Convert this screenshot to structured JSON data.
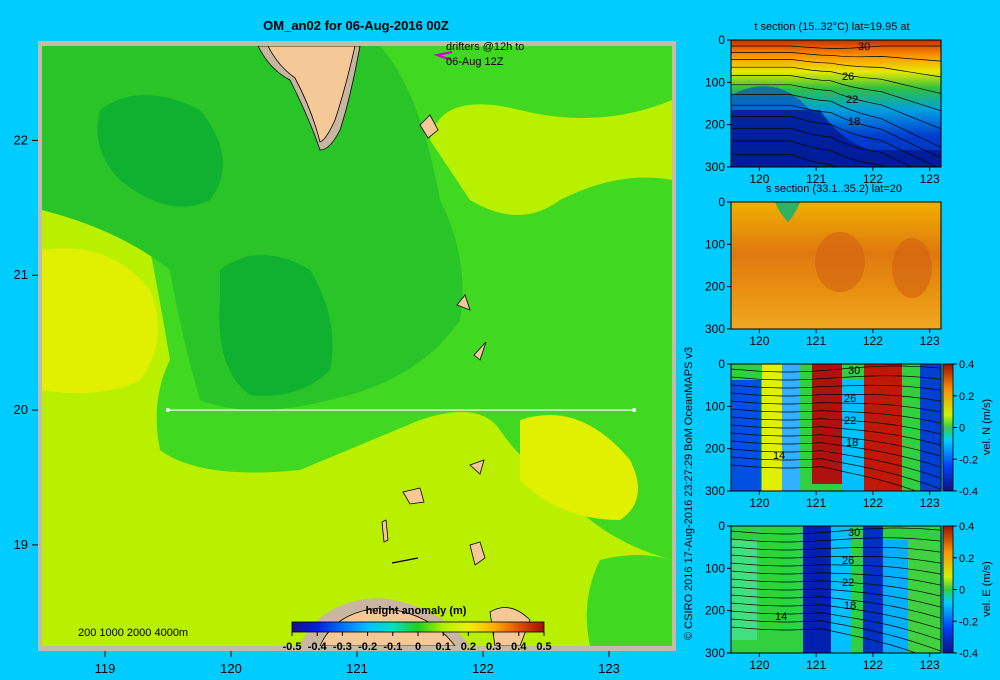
{
  "colors": {
    "background": "#00ccff",
    "land": "#f5c898",
    "shelf": "#c8b6a0",
    "frame": "#c4bca8"
  },
  "chart_data": [
    {
      "id": "main",
      "type": "heatmap",
      "title": "OM_an02 for 06-Aug-2016 00Z",
      "xlim": [
        118.5,
        123.5
      ],
      "ylim": [
        18.25,
        22.7
      ],
      "xticks": [
        "119",
        "120",
        "121",
        "122",
        "123"
      ],
      "yticks": [
        "19",
        "20",
        "21",
        "22"
      ],
      "section_line": {
        "lat": 20,
        "lon_start": 119.5,
        "lon_end": 123.2
      },
      "bathymetry_legend": "200  1000  2000  4000m",
      "drifter_note": [
        "drifters @12h to",
        "06-Aug 12Z"
      ],
      "colorbar": {
        "label": "height anomaly  (m)",
        "range": [
          -0.5,
          0.5
        ],
        "ticks": [
          "-0.5",
          "-0.4",
          "-0.3",
          "-0.2",
          "-0.1",
          "0",
          "0.1",
          "0.2",
          "0.3",
          "0.4",
          "0.5"
        ]
      }
    },
    {
      "id": "t-section",
      "type": "heatmap",
      "title": "t section (15..32°C) lat=19.95 at",
      "xticks": [
        "120",
        "121",
        "122",
        "123"
      ],
      "yticks": [
        "0",
        "100",
        "200",
        "300"
      ],
      "xlim": [
        119.5,
        123.2
      ],
      "ylim": [
        300,
        0
      ],
      "contour_labels": [
        "30",
        "26",
        "22",
        "18"
      ]
    },
    {
      "id": "s-section",
      "type": "heatmap",
      "title": "s section (33.1..35.2) lat=20",
      "xticks": [
        "120",
        "121",
        "122",
        "123"
      ],
      "yticks": [
        "0",
        "100",
        "200",
        "300"
      ],
      "xlim": [
        119.5,
        123.2
      ],
      "ylim": [
        300,
        0
      ]
    },
    {
      "id": "vel-n",
      "type": "heatmap",
      "title": "",
      "xticks": [
        "120",
        "121",
        "122",
        "123"
      ],
      "yticks": [
        "0",
        "100",
        "200",
        "300"
      ],
      "xlim": [
        119.5,
        123.2
      ],
      "ylim": [
        300,
        0
      ],
      "contour_labels": [
        "30",
        "26",
        "22",
        "18",
        "14"
      ],
      "colorbar": {
        "label": "vel. N (m/s)",
        "ticks": [
          "0.4",
          "0.2",
          "0",
          "-0.2",
          "-0.4"
        ],
        "range": [
          -0.4,
          0.4
        ]
      }
    },
    {
      "id": "vel-e",
      "type": "heatmap",
      "title": "",
      "xticks": [
        "120",
        "121",
        "122",
        "123"
      ],
      "yticks": [
        "0",
        "100",
        "200",
        "300"
      ],
      "xlim": [
        119.5,
        123.2
      ],
      "ylim": [
        300,
        0
      ],
      "contour_labels": [
        "30",
        "26",
        "22",
        "18",
        "14"
      ],
      "colorbar": {
        "label": "vel. E (m/s)",
        "ticks": [
          "0.4",
          "0.2",
          "0",
          "-0.2",
          "-0.4"
        ],
        "range": [
          -0.4,
          0.4
        ]
      }
    }
  ],
  "credit": "© CSIRO 2016   17-Aug-2016 23:27:29 BoM OceanMAPS v3"
}
